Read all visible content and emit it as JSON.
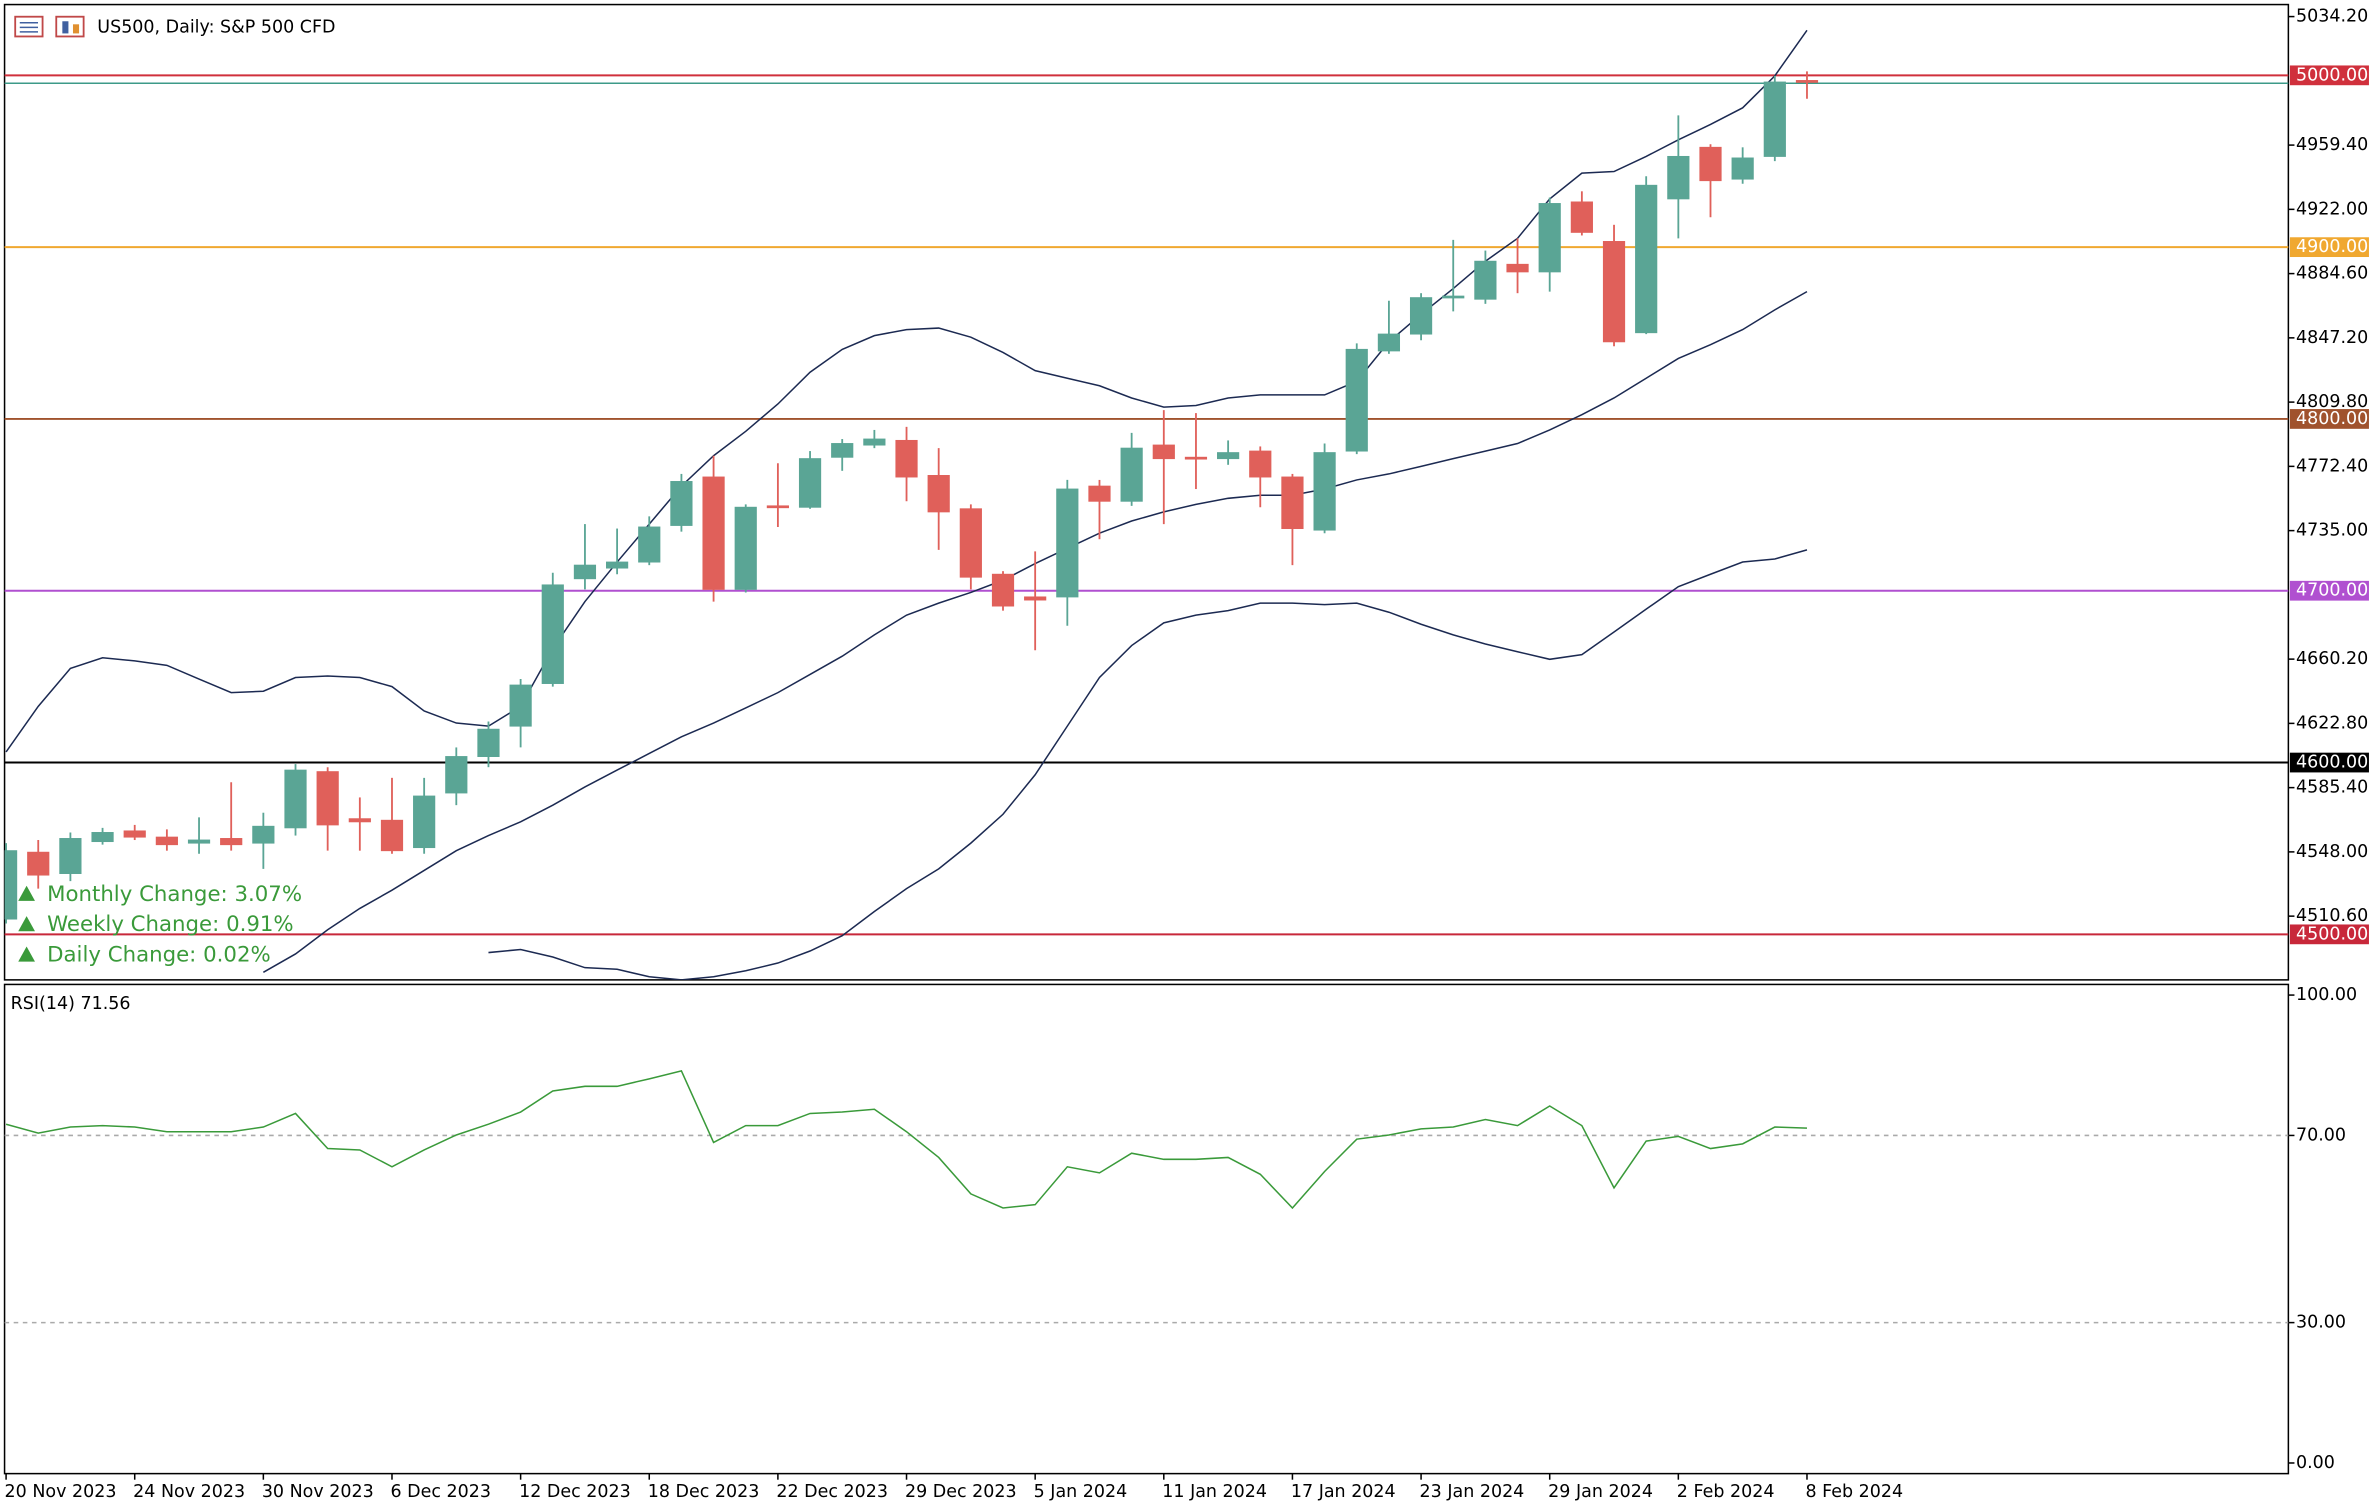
{
  "chart_data": [
    {
      "type": "candlestick",
      "title": "US500, Daily:  S&P 500 CFD",
      "categories": [
        "20 Nov 2023",
        null,
        null,
        null,
        "24 Nov 2023",
        null,
        null,
        null,
        "30 Nov 2023",
        null,
        null,
        null,
        "6 Dec 2023",
        null,
        null,
        null,
        "12 Dec 2023",
        null,
        null,
        null,
        "18 Dec 2023",
        null,
        null,
        null,
        "22 Dec 2023",
        null,
        null,
        null,
        "29 Dec 2023",
        null,
        null,
        null,
        "5 Jan 2024",
        null,
        null,
        null,
        "11 Jan 2024",
        null,
        null,
        null,
        "17 Jan 2024",
        null,
        null,
        null,
        "23 Jan 2024",
        null,
        null,
        null,
        "29 Jan 2024",
        null,
        null,
        null,
        "2 Feb 2024",
        null,
        null,
        null,
        "8 Feb 2024"
      ],
      "open": [
        4508.9,
        4547.8,
        4535.4,
        4554.0,
        4560.2,
        4556.6,
        4553.1,
        4555.8,
        4553.1,
        4562.0,
        4594.7,
        4567.3,
        4566.4,
        4550.5,
        4582.3,
        4603.5,
        4621.2,
        4646.0,
        4707.0,
        4713.2,
        4716.7,
        4738.0,
        4766.2,
        4700.8,
        4749.4,
        4748.6,
        4777.7,
        4784.8,
        4787.5,
        4767.1,
        4747.7,
        4709.6,
        4696.4,
        4696.4,
        4760.9,
        4752.1,
        4784.8,
        4777.7,
        4776.9,
        4781.3,
        4766.2,
        4735.3,
        4781.3,
        4839.6,
        4849.4,
        4870.6,
        4869.7,
        4890.0,
        4885.6,
        4926.3,
        4903.3,
        4850.2,
        4928.1,
        4958.1,
        4939.6,
        4952.8,
        4997.0
      ],
      "high": [
        4553.1,
        4554.9,
        4559.3,
        4562.0,
        4563.7,
        4561.1,
        4568.1,
        4588.5,
        4570.8,
        4599.1,
        4597.3,
        4579.7,
        4591.1,
        4591.1,
        4608.8,
        4623.9,
        4648.6,
        4710.5,
        4738.8,
        4736.2,
        4743.3,
        4768.0,
        4778.6,
        4750.3,
        4774.2,
        4781.3,
        4788.3,
        4793.6,
        4795.4,
        4783.0,
        4750.3,
        4711.4,
        4722.9,
        4764.5,
        4764.5,
        4791.9,
        4805.1,
        4803.4,
        4787.5,
        4784.0,
        4768.0,
        4785.7,
        4844.0,
        4868.8,
        4873.2,
        4904.2,
        4898.0,
        4905.1,
        4928.9,
        4932.5,
        4913.0,
        4941.3,
        4976.7,
        4959.9,
        4958.1,
        4999.7,
        5002.3
      ],
      "low": [
        4506.3,
        4526.6,
        4531.0,
        4552.2,
        4554.9,
        4548.7,
        4546.9,
        4548.7,
        4538.1,
        4557.5,
        4548.7,
        4548.7,
        4546.9,
        4546.9,
        4575.2,
        4597.3,
        4608.8,
        4644.2,
        4700.8,
        4709.6,
        4714.9,
        4734.4,
        4693.7,
        4699.0,
        4737.1,
        4747.7,
        4769.8,
        4783.0,
        4752.1,
        4723.8,
        4700.8,
        4688.4,
        4665.4,
        4679.6,
        4730.0,
        4749.4,
        4738.8,
        4759.2,
        4773.3,
        4748.6,
        4714.9,
        4733.5,
        4779.5,
        4837.9,
        4845.8,
        4862.6,
        4867.0,
        4873.2,
        4874.1,
        4906.8,
        4842.3,
        4849.4,
        4905.1,
        4917.4,
        4936.9,
        4950.1,
        4986.4
      ],
      "close": [
        4548.7,
        4534.5,
        4555.8,
        4559.3,
        4556.6,
        4552.2,
        4554.9,
        4552.2,
        4562.9,
        4595.6,
        4563.7,
        4565.5,
        4548.7,
        4580.5,
        4603.5,
        4619.4,
        4645.1,
        4703.4,
        4714.9,
        4716.7,
        4737.1,
        4763.6,
        4700.8,
        4748.6,
        4748.6,
        4776.9,
        4785.7,
        4788.3,
        4766.2,
        4745.9,
        4707.9,
        4691.1,
        4694.6,
        4759.2,
        4752.1,
        4783.0,
        4776.9,
        4777.0,
        4780.4,
        4766.2,
        4736.2,
        4780.4,
        4840.5,
        4849.4,
        4870.6,
        4871.5,
        4891.8,
        4885.6,
        4925.4,
        4908.6,
        4844.9,
        4936.0,
        4952.8,
        4938.7,
        4951.9,
        4996.1,
        4996.1
      ],
      "up_color": "#5aa595",
      "down_color": "#e0605a",
      "overlays": [
        {
          "color": "#1c2a52",
          "values": [
            4606.2,
            4632.7,
            4654.8,
            4661.0,
            4659.2,
            4656.6,
            4648.6,
            4640.7,
            4641.5,
            4649.5,
            4650.4,
            4649.5,
            4644.2,
            4630.0,
            4623.0,
            4621.2,
            4632.7,
            4666.3,
            4693.7,
            4716.7,
            4738.8,
            4760.9,
            4778.6,
            4792.8,
            4808.7,
            4827.2,
            4840.5,
            4848.5,
            4852.0,
            4852.9,
            4847.6,
            4838.7,
            4828.1,
            4823.7,
            4819.3,
            4812.2,
            4806.9,
            4807.8,
            4812.2,
            4814.0,
            4814.0,
            4814.0,
            4821.9,
            4844.9,
            4860.9,
            4875.9,
            4891.8,
            4905.1,
            4928.1,
            4943.1,
            4944.0,
            4952.8,
            4962.5,
            4971.4,
            4981.1,
            4999.7,
            5026.2
          ]
        },
        {
          "color": "#1c2a52",
          "values": [
            null,
            null,
            null,
            null,
            null,
            null,
            null,
            null,
            4477.9,
            4488.6,
            4502.7,
            4515.1,
            4525.7,
            4537.2,
            4548.7,
            4557.5,
            4565.5,
            4575.2,
            4585.8,
            4595.6,
            4605.3,
            4615.0,
            4623.0,
            4631.8,
            4640.7,
            4651.3,
            4661.9,
            4674.3,
            4685.8,
            4692.8,
            4699.0,
            4706.1,
            4715.8,
            4724.7,
            4733.5,
            4740.6,
            4745.9,
            4750.3,
            4753.8,
            4755.6,
            4755.6,
            4759.2,
            4764.5,
            4768.0,
            4772.4,
            4776.9,
            4781.3,
            4785.7,
            4793.6,
            4802.5,
            4812.2,
            4823.7,
            4835.2,
            4843.2,
            4852.0,
            4863.5,
            4874.1
          ]
        },
        {
          "color": "#1c2a52",
          "values": [
            null,
            null,
            null,
            null,
            null,
            null,
            null,
            null,
            null,
            null,
            null,
            null,
            null,
            null,
            null,
            4489.4,
            4491.2,
            4486.8,
            4480.6,
            4479.7,
            4475.3,
            4473.5,
            4475.3,
            4478.8,
            4483.3,
            4490.3,
            4499.2,
            4513.3,
            4526.6,
            4538.1,
            4553.1,
            4569.9,
            4592.9,
            4621.2,
            4649.5,
            4668.1,
            4681.3,
            4685.8,
            4688.4,
            4692.8,
            4692.8,
            4691.9,
            4692.8,
            4687.5,
            4680.5,
            4674.3,
            4669.0,
            4664.5,
            4660.1,
            4662.8,
            4676.0,
            4689.3,
            4702.4,
            4709.6,
            4716.7,
            4718.5,
            4723.8
          ]
        }
      ],
      "levels": [
        {
          "value": 5000,
          "label": "5000.00",
          "color": "#d0303c"
        },
        {
          "value": 4900,
          "label": "4900.00",
          "color": "#f0a830"
        },
        {
          "value": 4800,
          "label": "4800.00",
          "color": "#a0522d"
        },
        {
          "value": 4700,
          "label": "4700.00",
          "color": "#b050d0"
        },
        {
          "value": 4600,
          "label": "4600.00",
          "color": "#000000"
        },
        {
          "value": 4500,
          "label": "4500.00",
          "color": "#c8283a"
        }
      ],
      "current_price": 4995.4,
      "current_color": "#3c9a88",
      "annotations": [
        "Monthly Change: 3.07%",
        "Weekly Change: 0.91%",
        "Daily Change: 0.02%"
      ],
      "annotation_color": "#3a9a3a",
      "ylim": [
        4473.5,
        5041.2
      ],
      "yticks": [
        {
          "value": 5034.2,
          "label": "5034.20"
        },
        {
          "value": 4959.4,
          "label": "4959.40"
        },
        {
          "value": 4922.0,
          "label": "4922.00"
        },
        {
          "value": 4884.6,
          "label": "4884.60"
        },
        {
          "value": 4847.2,
          "label": "4847.20"
        },
        {
          "value": 4809.8,
          "label": "4809.80"
        },
        {
          "value": 4772.4,
          "label": "4772.40"
        },
        {
          "value": 4735.0,
          "label": "4735.00"
        },
        {
          "value": 4660.2,
          "label": "4660.20"
        },
        {
          "value": 4622.8,
          "label": "4622.80"
        },
        {
          "value": 4585.4,
          "label": "4585.40"
        },
        {
          "value": 4548.0,
          "label": "4548.00"
        },
        {
          "value": 4510.6,
          "label": "4510.60"
        }
      ]
    },
    {
      "type": "line",
      "title": "RSI(14) 71.56",
      "color": "#3a9a3a",
      "values": [
        72.4,
        70.5,
        71.8,
        72.1,
        71.8,
        70.8,
        70.8,
        70.8,
        71.8,
        74.7,
        67.2,
        66.9,
        63.3,
        66.9,
        70.1,
        72.4,
        75.0,
        79.5,
        80.5,
        80.5,
        82.1,
        83.8,
        68.5,
        72.1,
        72.1,
        74.7,
        75.0,
        75.6,
        70.8,
        65.3,
        57.5,
        54.5,
        55.2,
        63.3,
        62.0,
        66.2,
        64.9,
        64.9,
        65.3,
        61.7,
        54.5,
        62.3,
        69.2,
        70.1,
        71.4,
        71.8,
        73.4,
        72.1,
        76.3,
        72.1,
        58.8,
        68.8,
        69.8,
        67.2,
        68.2,
        71.8,
        71.56
      ],
      "levels": [
        70,
        30
      ],
      "ylim": [
        0,
        100
      ],
      "yticks": [
        {
          "value": 100,
          "label": "100.00"
        },
        {
          "value": 70,
          "label": "70.00"
        },
        {
          "value": 30,
          "label": "30.00"
        },
        {
          "value": 0,
          "label": "0.00"
        }
      ]
    }
  ]
}
